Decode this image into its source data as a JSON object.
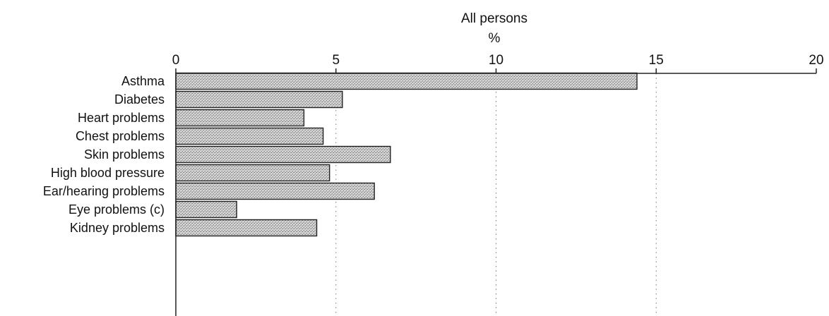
{
  "chart_data": {
    "type": "bar",
    "orientation": "horizontal",
    "title": "All persons",
    "subtitle": "%",
    "categories": [
      "Asthma",
      "Diabetes",
      "Heart problems",
      "Chest problems",
      "Skin problems",
      "High blood pressure",
      "Ear/hearing problems",
      "Eye problems (c)",
      "Kidney problems"
    ],
    "values": [
      14.4,
      5.2,
      4.0,
      4.6,
      6.7,
      4.8,
      6.2,
      1.9,
      4.4
    ],
    "xlim": [
      0,
      20
    ],
    "xticks": [
      0,
      5,
      10,
      15,
      20
    ],
    "gridlines": [
      5,
      10,
      15
    ],
    "grid": true,
    "legend": "none",
    "colors": {
      "bar_fill": "#c9c9c9",
      "bar_stroke": "#222222",
      "axis": "#222222"
    }
  }
}
